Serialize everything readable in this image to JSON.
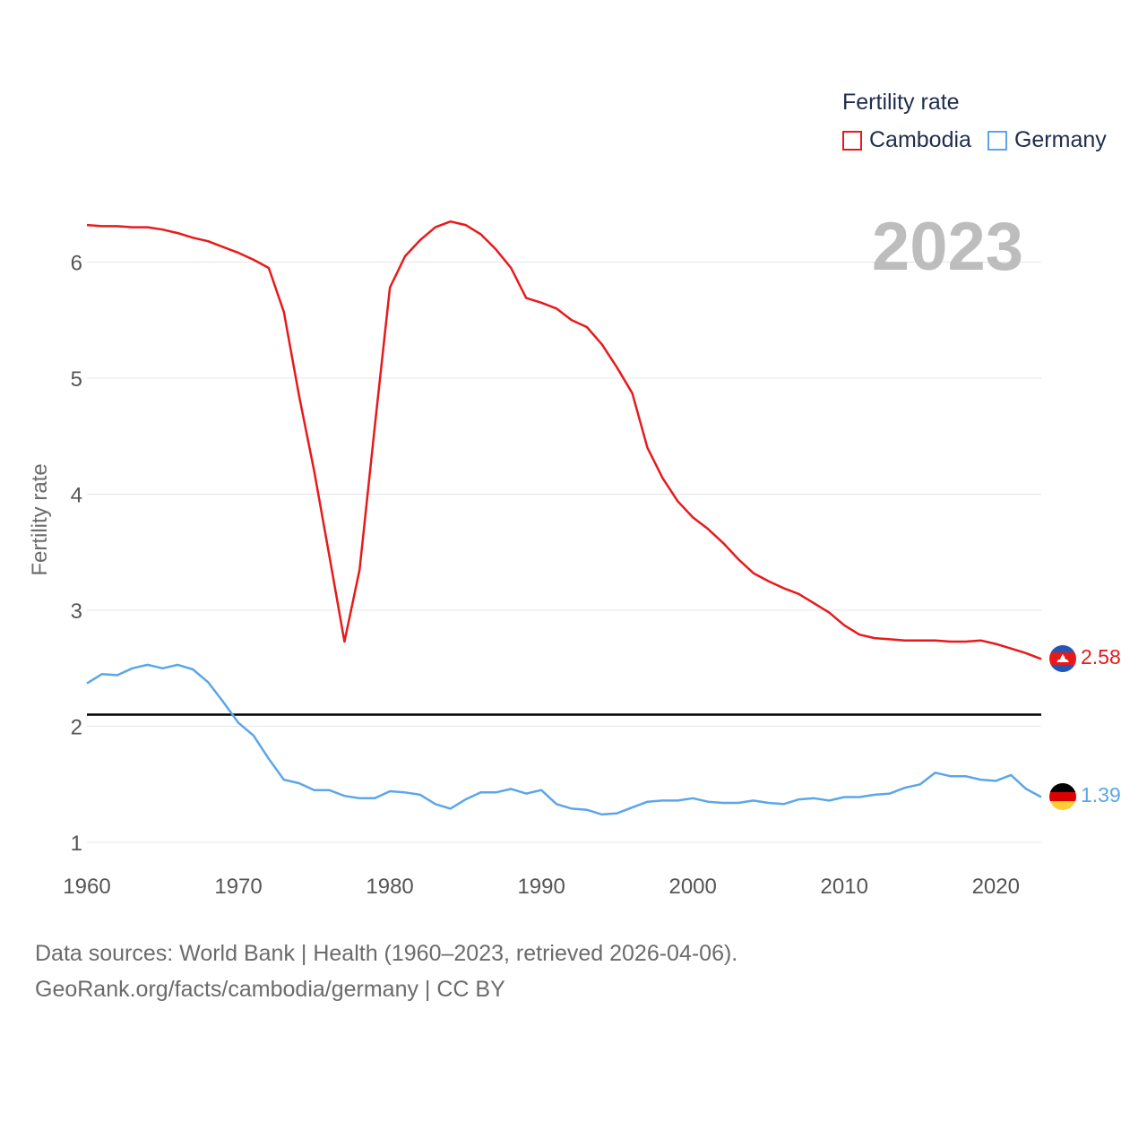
{
  "legend": {
    "title": "Fertility rate",
    "items": [
      {
        "label": "Cambodia",
        "color": "#e8191b"
      },
      {
        "label": "Germany",
        "color": "#5ba6e8"
      }
    ]
  },
  "year_label": "2023",
  "end_values": {
    "cambodia": "2.58",
    "germany": "1.39"
  },
  "source": {
    "line1": "Data sources: World Bank | Health (1960–2023, retrieved 2026-04-06).",
    "line2": "GeoRank.org/facts/cambodia/germany | CC BY"
  },
  "chart_data": {
    "type": "line",
    "title": "Fertility rate",
    "xlabel": "",
    "ylabel": "Fertility rate",
    "xlim": [
      1960,
      2023
    ],
    "ylim": [
      0.8,
      6.6
    ],
    "yticks": [
      1,
      2,
      3,
      4,
      5,
      6
    ],
    "xticks": [
      1960,
      1970,
      1980,
      1990,
      2000,
      2010,
      2020
    ],
    "grid": true,
    "reference_line": 2.1,
    "x": [
      1960,
      1961,
      1962,
      1963,
      1964,
      1965,
      1966,
      1967,
      1968,
      1969,
      1970,
      1971,
      1972,
      1973,
      1974,
      1975,
      1976,
      1977,
      1978,
      1979,
      1980,
      1981,
      1982,
      1983,
      1984,
      1985,
      1986,
      1987,
      1988,
      1989,
      1990,
      1991,
      1992,
      1993,
      1994,
      1995,
      1996,
      1997,
      1998,
      1999,
      2000,
      2001,
      2002,
      2003,
      2004,
      2005,
      2006,
      2007,
      2008,
      2009,
      2010,
      2011,
      2012,
      2013,
      2014,
      2015,
      2016,
      2017,
      2018,
      2019,
      2020,
      2021,
      2022,
      2023
    ],
    "series": [
      {
        "name": "Cambodia",
        "color": "#e8191b",
        "values": [
          6.32,
          6.31,
          6.31,
          6.3,
          6.3,
          6.28,
          6.25,
          6.21,
          6.18,
          6.13,
          6.08,
          6.02,
          5.95,
          5.57,
          4.85,
          4.2,
          3.47,
          2.73,
          3.35,
          4.58,
          5.78,
          6.05,
          6.19,
          6.3,
          6.35,
          6.32,
          6.24,
          6.11,
          5.95,
          5.69,
          5.65,
          5.6,
          5.5,
          5.44,
          5.29,
          5.09,
          4.87,
          4.4,
          4.14,
          3.94,
          3.8,
          3.7,
          3.58,
          3.44,
          3.32,
          3.25,
          3.19,
          3.14,
          3.06,
          2.98,
          2.87,
          2.79,
          2.76,
          2.75,
          2.74,
          2.74,
          2.74,
          2.73,
          2.73,
          2.74,
          2.71,
          2.67,
          2.63,
          2.58
        ]
      },
      {
        "name": "Germany",
        "color": "#5ba6e8",
        "values": [
          2.37,
          2.45,
          2.44,
          2.5,
          2.53,
          2.5,
          2.53,
          2.49,
          2.38,
          2.21,
          2.03,
          1.92,
          1.72,
          1.54,
          1.51,
          1.45,
          1.45,
          1.4,
          1.38,
          1.38,
          1.44,
          1.43,
          1.41,
          1.33,
          1.29,
          1.37,
          1.43,
          1.43,
          1.46,
          1.42,
          1.45,
          1.33,
          1.29,
          1.28,
          1.24,
          1.25,
          1.3,
          1.35,
          1.36,
          1.36,
          1.38,
          1.35,
          1.34,
          1.34,
          1.36,
          1.34,
          1.33,
          1.37,
          1.38,
          1.36,
          1.39,
          1.39,
          1.41,
          1.42,
          1.47,
          1.5,
          1.6,
          1.57,
          1.57,
          1.54,
          1.53,
          1.58,
          1.46,
          1.39
        ]
      }
    ]
  }
}
